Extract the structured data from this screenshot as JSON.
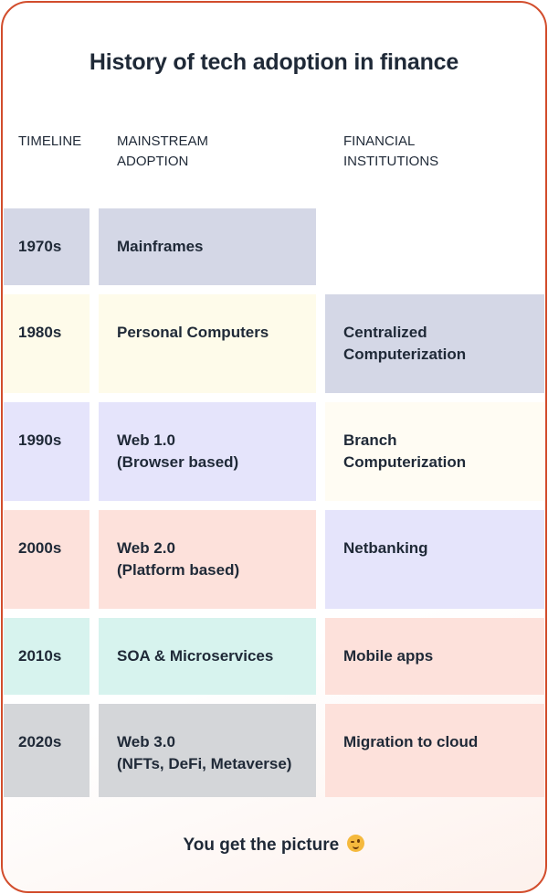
{
  "title": "History of tech adoption in finance",
  "headers": {
    "timeline": "TIMELINE",
    "mainstream": "MAINSTREAM\nADOPTION",
    "financial": "FINANCIAL\nINSTITUTIONS"
  },
  "rows": [
    {
      "year": "1970s",
      "mainstream": "Mainframes",
      "financial": ""
    },
    {
      "year": "1980s",
      "mainstream": "Personal Computers",
      "financial": "Centralized\nComputerization"
    },
    {
      "year": "1990s",
      "mainstream": "Web 1.0\n(Browser based)",
      "financial": "Branch\nComputerization"
    },
    {
      "year": "2000s",
      "mainstream": "Web 2.0\n(Platform based)",
      "financial": "Netbanking"
    },
    {
      "year": "2010s",
      "mainstream": "SOA & Microservices",
      "financial": "Mobile apps"
    },
    {
      "year": "2020s",
      "mainstream": "Web 3.0\n(NFTs, DeFi, Metaverse)",
      "financial": "Migration to cloud"
    }
  ],
  "colors": {
    "border": "#d24d2c",
    "slate": "#d4d7e6",
    "cream": "#fefbea",
    "lavender": "#e5e4fb",
    "peach": "#fde1db",
    "mint": "#d7f3ee",
    "gray": "#d4d6d9",
    "cream_light": "#fffcf3"
  },
  "footer": "You get the picture",
  "footer_icon": "winking-face-icon"
}
